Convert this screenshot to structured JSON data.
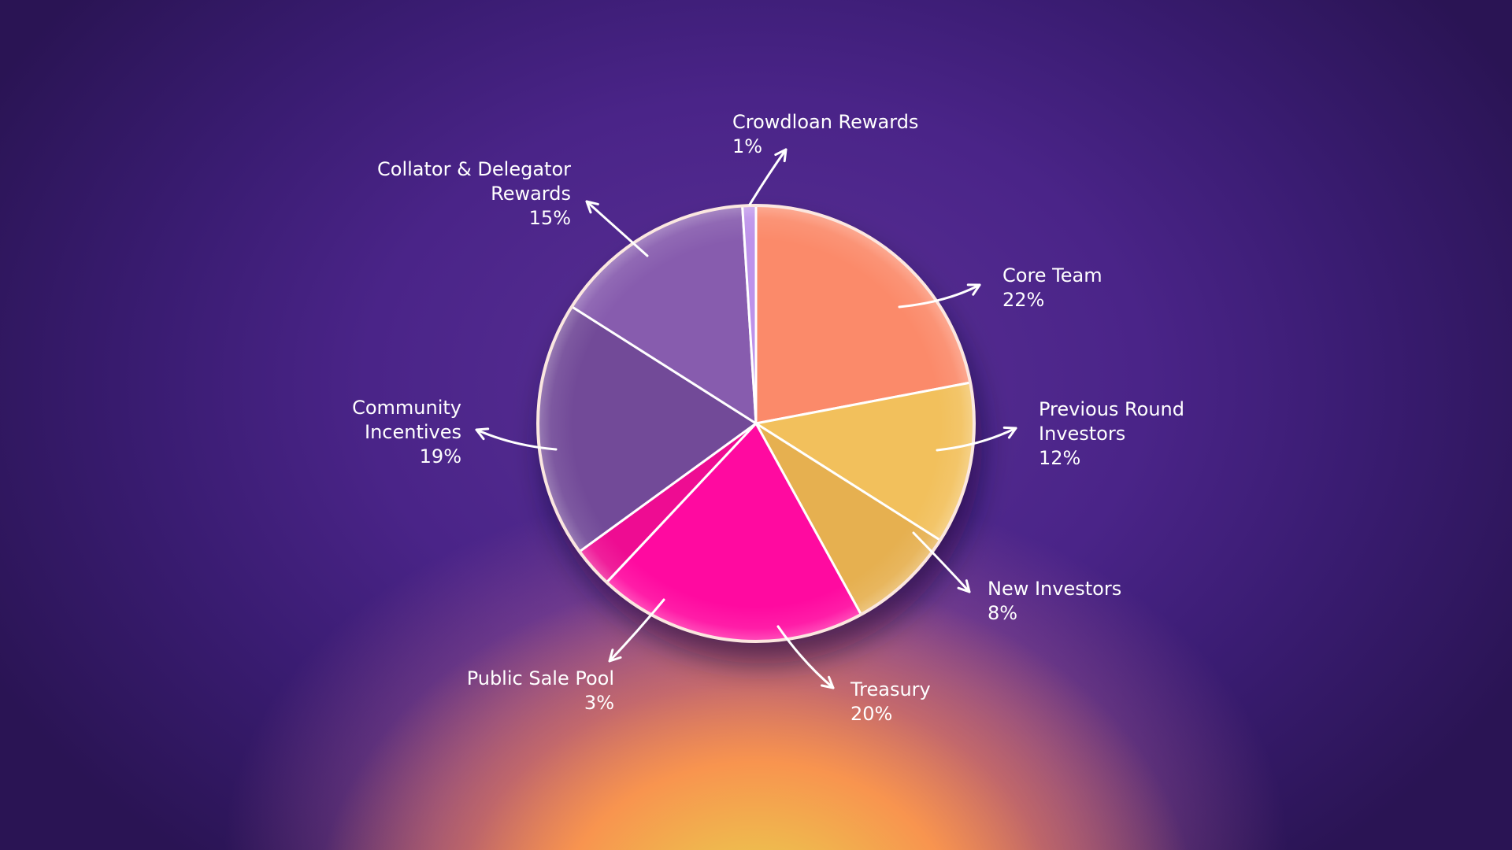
{
  "chart_data": {
    "type": "pie",
    "title": "",
    "slices": [
      {
        "label_lines": [
          "Core Team"
        ],
        "value_label": "22%",
        "value": 22,
        "color": "#fb8a6a"
      },
      {
        "label_lines": [
          "Previous Round",
          "Investors"
        ],
        "value_label": "12%",
        "value": 12,
        "color": "#f2c05c"
      },
      {
        "label_lines": [
          "New Investors"
        ],
        "value_label": "8%",
        "value": 8,
        "color": "#e6b050"
      },
      {
        "label_lines": [
          "Treasury"
        ],
        "value_label": "20%",
        "value": 20,
        "color": "#ff0aa0"
      },
      {
        "label_lines": [
          "Public Sale Pool"
        ],
        "value_label": "3%",
        "value": 3,
        "color": "#ee0c92"
      },
      {
        "label_lines": [
          "Community",
          "Incentives"
        ],
        "value_label": "19%",
        "value": 19,
        "color": "#724a98"
      },
      {
        "label_lines": [
          "Collator & Delegator",
          "Rewards"
        ],
        "value_label": "15%",
        "value": 15,
        "color": "#875cae"
      },
      {
        "label_lines": [
          "Crowdloan Rewards"
        ],
        "value_label": "1%",
        "value": 1,
        "color": "#bd92ea"
      }
    ],
    "start_angle_deg": 0,
    "direction": "clockwise",
    "legend": "none",
    "label_placement": "outside-with-arrows"
  },
  "colors": {
    "background_top": "#2a1454",
    "background_mid": "#5a3096",
    "background_glow": "#f8944f",
    "outline": "#ffffff"
  }
}
